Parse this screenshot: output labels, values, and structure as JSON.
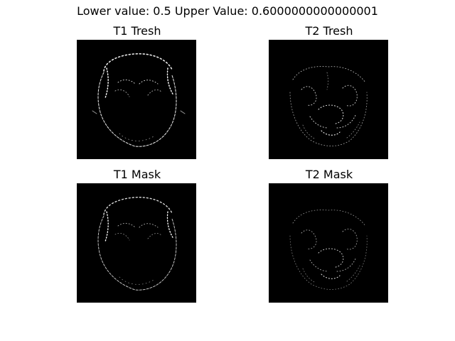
{
  "figure": {
    "suptitle": "Lower value: 0.5 Upper Value: 0.6000000000000001"
  },
  "panels": [
    {
      "title": "T1 Tresh"
    },
    {
      "title": "T2 Tresh"
    },
    {
      "title": "T1 Mask"
    },
    {
      "title": "T2 Mask"
    }
  ],
  "colors": {
    "image_background": "#000000",
    "feature": "#ffffff"
  }
}
